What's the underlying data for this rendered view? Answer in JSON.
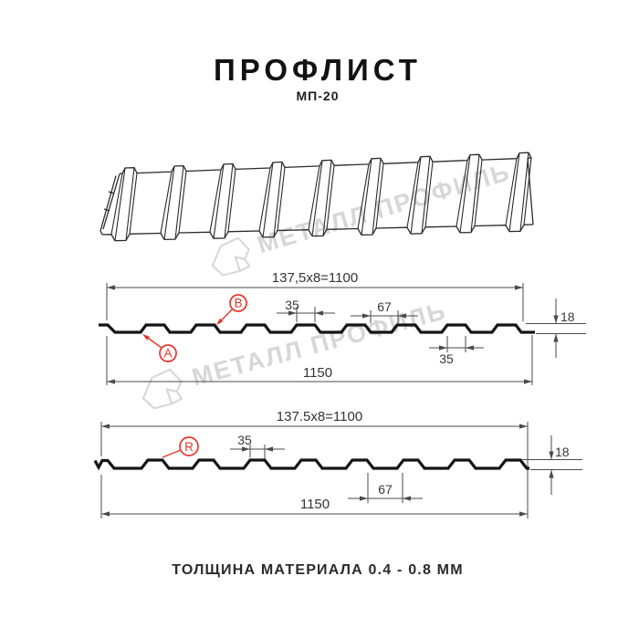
{
  "header": {
    "title": "ПРОФЛИСТ",
    "subtitle": "МП-20"
  },
  "footer": {
    "text": "ТОЛЩИНА МАТЕРИАЛА 0.4 - 0.8 ММ"
  },
  "watermark": {
    "text": "МЕТАЛЛ ПРОФИЛЬ",
    "color": "#d7d7d7"
  },
  "colors": {
    "accent_red": "#e7352c",
    "profile_line": "#141414",
    "thin_line": "#2a2a2a",
    "dim_line": "#4a4a4a",
    "dim_text": "#383838"
  },
  "profile_top": {
    "coverage_width": "137,5x8=1100",
    "overall_width": "1150",
    "rib_top_width": "35",
    "rib_spacing": "67",
    "height": "18",
    "edge_rib_width": "35",
    "label_a": "A",
    "label_b": "B"
  },
  "profile_bottom": {
    "coverage_width": "137.5x8=1100",
    "overall_width": "1150",
    "rib_top_width": "35",
    "valley_width": "67",
    "height": "18",
    "label_r": "R"
  }
}
